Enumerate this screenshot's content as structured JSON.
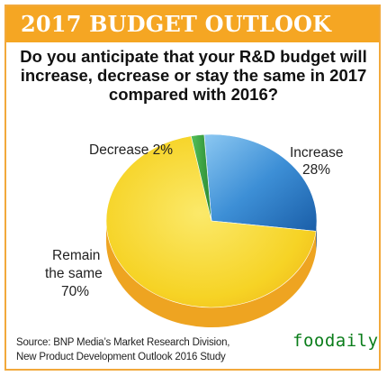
{
  "header": {
    "title": "2017 BUDGET OUTLOOK"
  },
  "question": "Do you anticipate that your R&D budget will increase, decrease or stay the same in 2017 compared with 2016?",
  "chart_data": {
    "type": "pie",
    "title": "",
    "slices": [
      {
        "label": "Increase",
        "value": 28,
        "color": "#2f7cc4"
      },
      {
        "label": "Remain the same",
        "value": 70,
        "color": "#f7d12a"
      },
      {
        "label": "Decrease",
        "value": 2,
        "color": "#3aa640"
      }
    ],
    "labels": {
      "increase": [
        "Increase",
        "28%"
      ],
      "remain": [
        "Remain",
        "the same",
        "70%"
      ],
      "decrease": [
        "Decrease 2%"
      ]
    }
  },
  "source": {
    "line1": "Source: BNP Media’s Market Research Division,",
    "line2": "New Product Development Outlook 2016 Study"
  },
  "watermark": "foodaily",
  "colors": {
    "header": "#f5a623",
    "border": "#f2a93b",
    "watermark": "#0a7d1a"
  }
}
